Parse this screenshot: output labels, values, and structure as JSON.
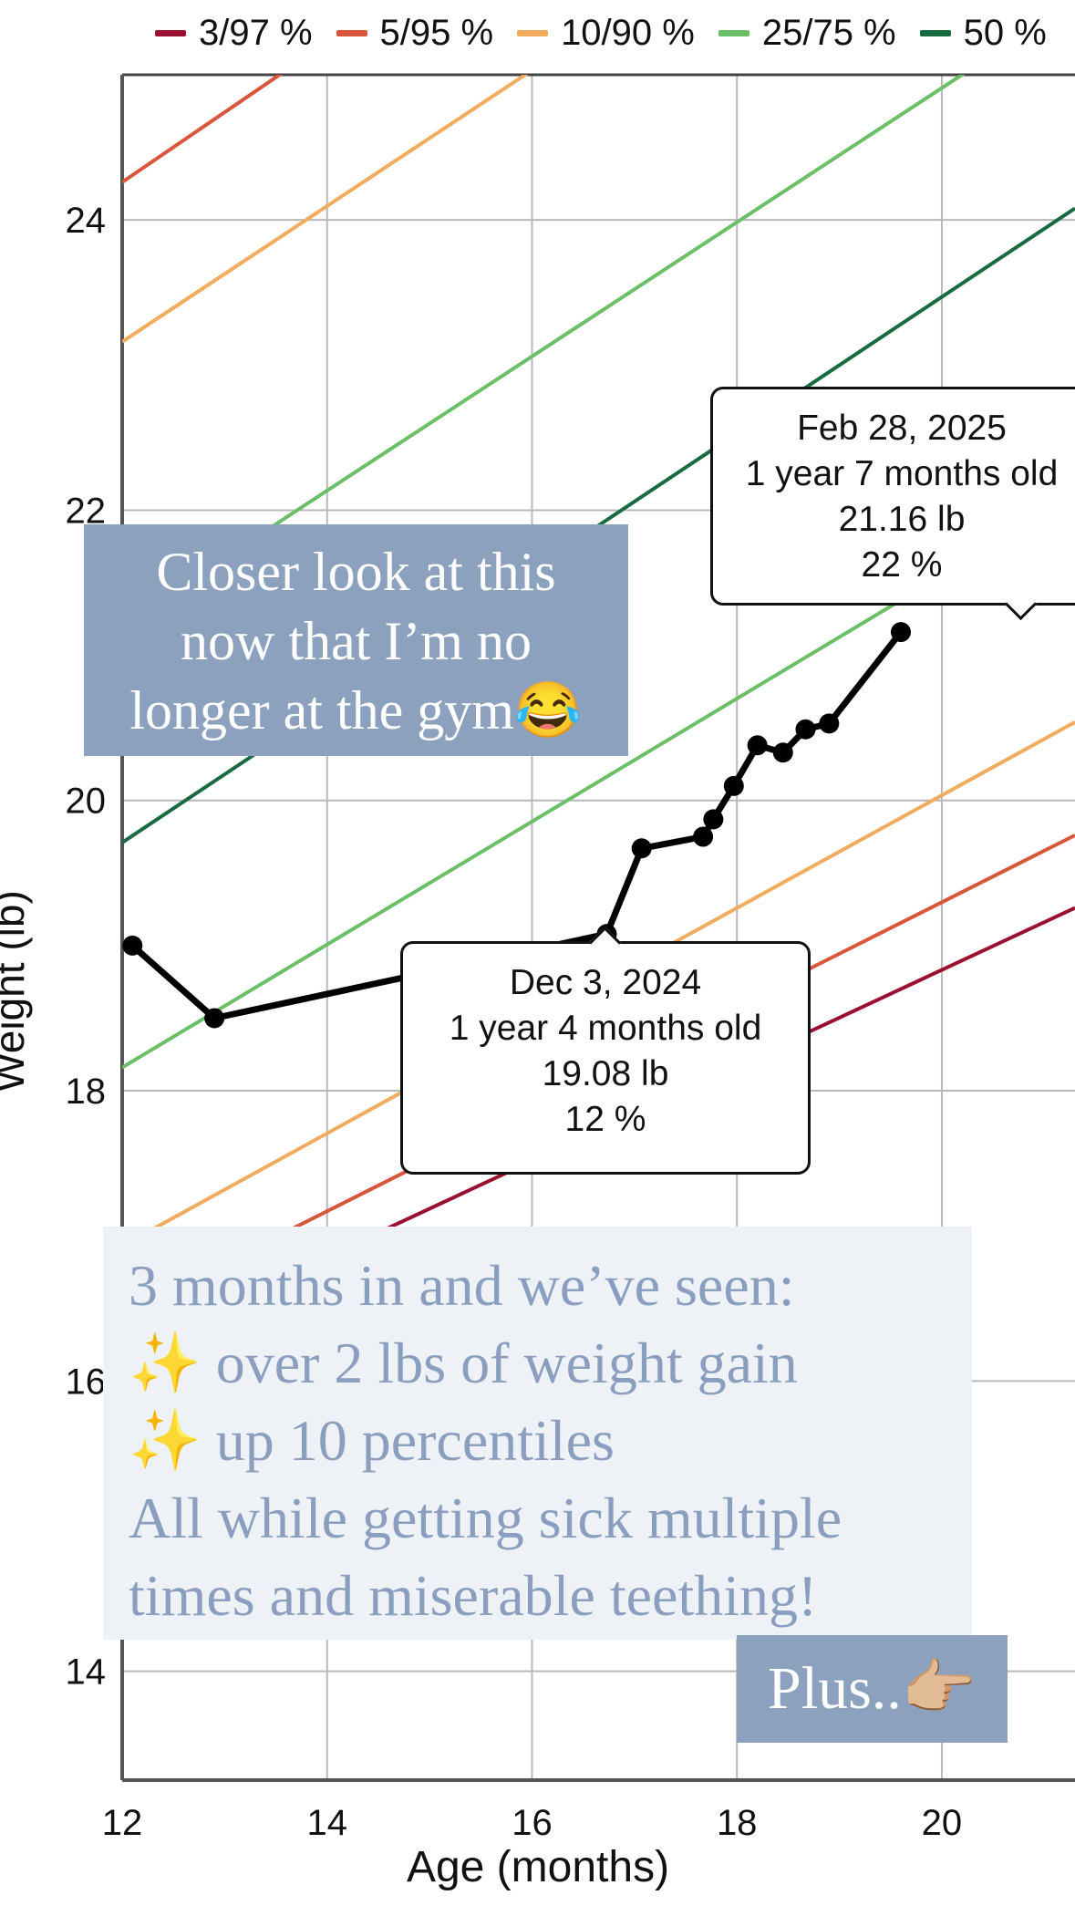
{
  "chart_data": {
    "type": "line",
    "xlabel": "Age (months)",
    "ylabel": "Weight (lb)",
    "xlim": [
      12,
      21.3
    ],
    "ylim": [
      13.25,
      25
    ],
    "x_ticks": [
      12,
      14,
      16,
      18,
      20
    ],
    "y_ticks": [
      14,
      16,
      18,
      20,
      22,
      24
    ],
    "grid": true,
    "legend_position": "top",
    "percentile_lines": [
      {
        "name": "3/97 %",
        "color": "#9b1030",
        "lower": [
          [
            12,
            16.2
          ],
          [
            21.3,
            19.26
          ]
        ]
      },
      {
        "name": "5/95 %",
        "color": "#d9553b",
        "lower": [
          [
            12,
            16.46
          ],
          [
            21.3,
            19.76
          ]
        ],
        "upper": [
          [
            12,
            24.26
          ],
          [
            21.3,
            28.74
          ]
        ]
      },
      {
        "name": "10/90 %",
        "color": "#f2ac5e",
        "lower": [
          [
            12,
            16.93
          ],
          [
            21.3,
            20.54
          ]
        ],
        "upper": [
          [
            12,
            23.16
          ],
          [
            21.3,
            27.51
          ]
        ]
      },
      {
        "name": "25/75 %",
        "color": "#6bbf67",
        "lower": [
          [
            12,
            18.16
          ],
          [
            21.3,
            22.1
          ]
        ],
        "upper": [
          [
            12,
            21.21
          ],
          [
            21.3,
            25.51
          ]
        ]
      },
      {
        "name": "50 %",
        "color": "#176b3f",
        "middle": [
          [
            12,
            19.71
          ],
          [
            21.3,
            24.08
          ]
        ]
      }
    ],
    "series": [
      {
        "x": [
          12.1,
          12.9,
          16.73,
          17.07,
          17.67,
          17.77,
          17.97,
          18.2,
          18.45,
          18.67,
          18.9,
          19.6
        ],
        "y": [
          19.0,
          18.5,
          19.08,
          19.67,
          19.75,
          19.87,
          20.1,
          20.38,
          20.33,
          20.49,
          20.53,
          21.16
        ],
        "color": "#000000"
      }
    ],
    "annotations": [
      {
        "x": 16.73,
        "y": 19.08,
        "lines": [
          "Dec 3, 2024",
          "1 year 4 months old",
          "19.08 lb",
          "12 %"
        ]
      },
      {
        "x": 19.6,
        "y": 21.16,
        "lines": [
          "Feb 28, 2025",
          "1 year 7 months old",
          "21.16 lb",
          "22 %"
        ]
      }
    ]
  },
  "overlays": {
    "caption_1": [
      "Closer look at this",
      "now that I’m no",
      "longer at the gym😂"
    ],
    "caption_2": {
      "line_1": "3 months in and we’ve seen:",
      "line_2_icon": "✨",
      "line_2": "over 2 lbs of weight gain",
      "line_3_icon": "✨",
      "line_3": "up 10 percentiles",
      "line_4": "All while getting sick multiple",
      "line_5": "times and miserable teething!"
    },
    "caption_3": "Plus..👉🏼"
  }
}
